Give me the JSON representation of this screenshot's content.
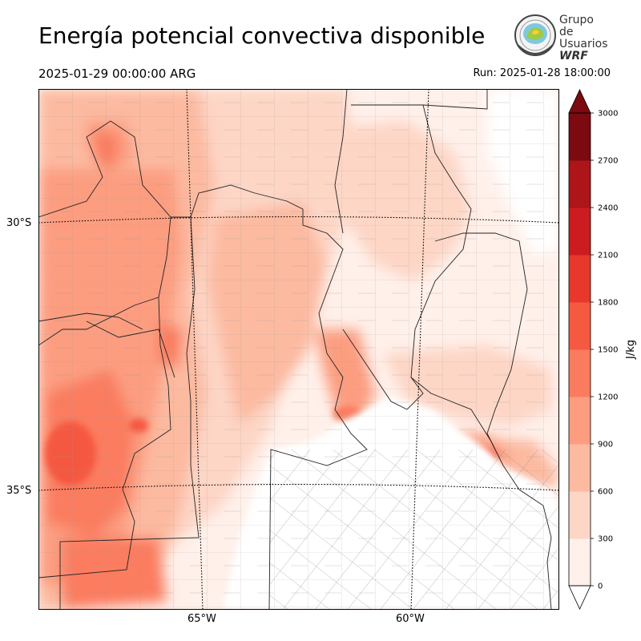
{
  "title": "Energía potencial convectiva disponible",
  "valid_time": "2025-01-29 00:00:00 ARG",
  "run_time": "Run: 2025-01-28 18:00:00",
  "logo": {
    "line1": "Grupo de",
    "line2": "Usuarios",
    "line3": "WRF"
  },
  "lat_labels": [
    "30°S",
    "35°S"
  ],
  "lon_labels": [
    "65°W",
    "60°W"
  ],
  "colorbar": {
    "unit": "J/kg",
    "ticks": [
      "0",
      "300",
      "600",
      "900",
      "1200",
      "1500",
      "1800",
      "2100",
      "2400",
      "2700",
      "3000"
    ],
    "colors": [
      "#fff0ea",
      "#fdd6c6",
      "#fcbaa0",
      "#fc9d80",
      "#fb7b5f",
      "#f5593f",
      "#e8382b",
      "#cc1c20",
      "#ad1519",
      "#7c0a11"
    ],
    "extend": "both"
  }
}
